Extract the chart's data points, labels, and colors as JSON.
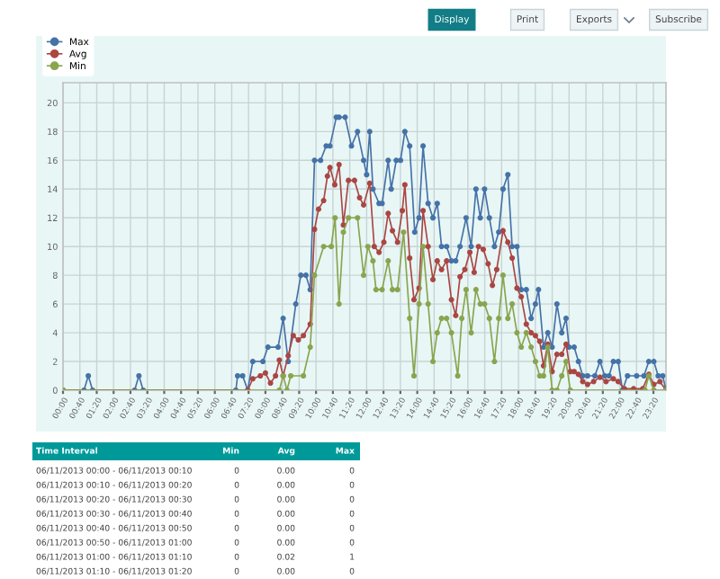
{
  "chart_data": {
    "type": "line",
    "legend": "top left",
    "marker": "circle",
    "grid": true,
    "ylim": [
      0,
      21.4
    ],
    "yticks": [
      0,
      2,
      4,
      6,
      8,
      10,
      12,
      14,
      16,
      18,
      20
    ],
    "xlim": [
      0,
      23.83
    ],
    "xticks": [
      {
        "value": 0,
        "label": "00:00"
      },
      {
        "value": 0.6667,
        "label": "00:40"
      },
      {
        "value": 1.3333,
        "label": "01:20"
      },
      {
        "value": 2,
        "label": "02:00"
      },
      {
        "value": 2.6667,
        "label": "02:40"
      },
      {
        "value": 3.3333,
        "label": "03:20"
      },
      {
        "value": 4,
        "label": "04:00"
      },
      {
        "value": 4.6667,
        "label": "04:40"
      },
      {
        "value": 5.3333,
        "label": "05:20"
      },
      {
        "value": 6,
        "label": "06:00"
      },
      {
        "value": 6.6667,
        "label": "06:40"
      },
      {
        "value": 7.3333,
        "label": "07:20"
      },
      {
        "value": 8,
        "label": "08:00"
      },
      {
        "value": 8.6667,
        "label": "08:40"
      },
      {
        "value": 9.3333,
        "label": "09:20"
      },
      {
        "value": 10,
        "label": "10:00"
      },
      {
        "value": 10.6667,
        "label": "10:40"
      },
      {
        "value": 11.3333,
        "label": "11:20"
      },
      {
        "value": 12,
        "label": "12:00"
      },
      {
        "value": 12.6667,
        "label": "12:40"
      },
      {
        "value": 13.3333,
        "label": "13:20"
      },
      {
        "value": 14,
        "label": "14:00"
      },
      {
        "value": 14.6667,
        "label": "14:40"
      },
      {
        "value": 15.3333,
        "label": "15:20"
      },
      {
        "value": 16,
        "label": "16:00"
      },
      {
        "value": 16.6667,
        "label": "16:40"
      },
      {
        "value": 17.3333,
        "label": "17:20"
      },
      {
        "value": 18,
        "label": "18:00"
      },
      {
        "value": 18.6667,
        "label": "18:40"
      },
      {
        "value": 19.3333,
        "label": "19:20"
      },
      {
        "value": 20,
        "label": "20:00"
      },
      {
        "value": 20.6667,
        "label": "20:40"
      },
      {
        "value": 21.3333,
        "label": "21:20"
      },
      {
        "value": 22,
        "label": "22:00"
      },
      {
        "value": 22.6667,
        "label": "22:40"
      },
      {
        "value": 23.3333,
        "label": "23:20"
      }
    ],
    "series": [
      {
        "name": "Max",
        "color": "#4572a7",
        "x": [
          0,
          0.83,
          1.0,
          1.17,
          2.83,
          3.0,
          3.17,
          6.83,
          6.9,
          7.1,
          7.3,
          7.5,
          7.9,
          8.1,
          8.5,
          8.7,
          8.9,
          9.2,
          9.4,
          9.6,
          9.77,
          9.94,
          10.18,
          10.4,
          10.55,
          10.8,
          10.91,
          11.15,
          11.4,
          11.64,
          11.88,
          12.0,
          12.12,
          12.25,
          12.49,
          12.61,
          12.85,
          12.97,
          13.17,
          13.34,
          13.51,
          13.7,
          13.9,
          14.07,
          14.23,
          14.43,
          14.62,
          14.79,
          14.96,
          15.16,
          15.35,
          15.52,
          15.69,
          15.93,
          16.13,
          16.32,
          16.49,
          16.66,
          16.85,
          17.05,
          17.22,
          17.39,
          17.58,
          17.75,
          17.94,
          18.11,
          18.31,
          18.5,
          18.67,
          18.79,
          18.99,
          19.16,
          19.33,
          19.52,
          19.71,
          19.88,
          20.0,
          20.2,
          20.37,
          20.54,
          20.73,
          21.02,
          21.22,
          21.41,
          21.58,
          21.75,
          21.94,
          22.11,
          22.31,
          22.67,
          22.96,
          23.15,
          23.35,
          23.52,
          23.7,
          23.83
        ],
        "values": [
          0,
          0,
          1,
          0,
          0,
          1,
          0,
          0,
          1,
          1,
          0,
          2,
          2,
          3,
          3,
          5,
          2,
          6,
          8,
          8,
          7,
          16,
          16,
          17,
          17,
          19,
          19,
          19,
          17,
          18,
          16,
          15,
          18,
          14,
          13,
          13,
          16,
          14,
          16,
          16,
          18,
          17,
          11,
          12,
          17,
          13,
          12,
          13,
          10,
          10,
          9,
          9,
          10,
          12,
          10,
          14,
          12,
          14,
          12,
          10,
          11,
          14,
          15,
          10,
          10,
          7,
          7,
          5,
          6,
          7,
          3,
          4,
          3,
          6,
          4,
          5,
          3,
          3,
          2,
          1,
          1,
          1,
          2,
          1,
          1,
          2,
          2,
          0,
          1,
          1,
          1,
          2,
          2,
          1,
          1,
          0
        ]
      },
      {
        "name": "Avg",
        "color": "#aa4643",
        "x": [
          0,
          7.3,
          7.5,
          7.8,
          8.0,
          8.2,
          8.4,
          8.55,
          8.7,
          8.9,
          9.1,
          9.3,
          9.5,
          9.77,
          9.94,
          10.1,
          10.3,
          10.45,
          10.55,
          10.74,
          10.91,
          11.08,
          11.28,
          11.52,
          11.72,
          11.88,
          12.12,
          12.3,
          12.49,
          12.68,
          12.85,
          13.02,
          13.22,
          13.41,
          13.51,
          13.7,
          13.87,
          14.07,
          14.23,
          14.43,
          14.62,
          14.79,
          14.96,
          15.16,
          15.35,
          15.52,
          15.69,
          15.88,
          16.08,
          16.25,
          16.42,
          16.61,
          16.8,
          16.97,
          17.14,
          17.39,
          17.58,
          17.75,
          17.94,
          18.11,
          18.31,
          18.5,
          18.67,
          18.84,
          18.99,
          19.16,
          19.33,
          19.52,
          19.71,
          19.88,
          20.05,
          20.2,
          20.37,
          20.54,
          20.73,
          20.97,
          21.22,
          21.46,
          21.75,
          21.94,
          22.19,
          22.55,
          22.91,
          23.15,
          23.35,
          23.59,
          23.83
        ],
        "values": [
          0,
          0,
          0.8,
          1.0,
          1.2,
          0.5,
          1.0,
          2.1,
          1.0,
          2.4,
          3.8,
          3.5,
          3.8,
          4.6,
          11.2,
          12.6,
          13.2,
          14.9,
          15.5,
          14.3,
          15.7,
          11.5,
          14.6,
          14.6,
          13.4,
          12.9,
          14.4,
          10.0,
          9.6,
          10.3,
          12.3,
          11.1,
          10.3,
          12.5,
          14.3,
          9.2,
          6.3,
          7.1,
          12.5,
          10.0,
          7.7,
          9.0,
          8.4,
          9.0,
          6.3,
          5.2,
          7.9,
          8.4,
          9.6,
          8.2,
          10.0,
          9.8,
          8.8,
          7.3,
          8.4,
          11.1,
          10.3,
          9.2,
          7.1,
          6.5,
          4.6,
          4.0,
          3.8,
          3.4,
          1.7,
          3.2,
          1.3,
          2.5,
          2.5,
          3.2,
          1.3,
          1.3,
          1.1,
          0.6,
          0.4,
          0.6,
          0.9,
          0.6,
          0.8,
          0.6,
          0.1,
          0.1,
          0.1,
          1.1,
          0.4,
          0.6,
          0
        ]
      },
      {
        "name": "Min",
        "color": "#89a54e",
        "x": [
          0,
          8.55,
          8.7,
          8.85,
          9.0,
          9.5,
          9.77,
          9.94,
          10.3,
          10.6,
          10.75,
          10.91,
          11.08,
          11.28,
          11.64,
          11.88,
          12.05,
          12.25,
          12.37,
          12.61,
          12.85,
          13.02,
          13.22,
          13.46,
          13.7,
          13.87,
          14.07,
          14.23,
          14.43,
          14.62,
          14.79,
          14.96,
          15.16,
          15.35,
          15.6,
          15.76,
          15.93,
          16.13,
          16.32,
          16.49,
          16.66,
          16.85,
          17.05,
          17.22,
          17.39,
          17.58,
          17.75,
          17.94,
          18.11,
          18.31,
          18.5,
          18.67,
          18.84,
          18.99,
          19.16,
          19.33,
          19.52,
          19.71,
          19.88,
          20.05,
          23.0,
          23.15,
          23.35,
          23.83
        ],
        "values": [
          0,
          0,
          1,
          0,
          1,
          1,
          3,
          8,
          10,
          10,
          12,
          6,
          11,
          12,
          12,
          8,
          10,
          9,
          7,
          7,
          9,
          7,
          7,
          11,
          5,
          1,
          6,
          10,
          6,
          2,
          4,
          5,
          5,
          4,
          1,
          5,
          7,
          4,
          7,
          6,
          6,
          5,
          2,
          5,
          8,
          5,
          6,
          4,
          3,
          4,
          3,
          2,
          1,
          1,
          3,
          0,
          0,
          1,
          2,
          0,
          0,
          1,
          0,
          0
        ]
      }
    ],
    "annotations": [
      "Display",
      "Print",
      "Exports",
      "Subscribe",
      "Time Interval",
      "Min",
      "Avg",
      "Max",
      "06/11/2013 00:00 - 06/11/2013 00:10",
      "0",
      "0.00",
      "0",
      "06/11/2013 00:10 - 06/11/2013 00:20",
      "0",
      "0.00",
      "0",
      "06/11/2013 00:20 - 06/11/2013 00:30",
      "0",
      "0.00",
      "0",
      "06/11/2013 00:30 - 06/11/2013 00:40",
      "0",
      "0.00",
      "0",
      "06/11/2013 00:40 - 06/11/2013 00:50",
      "0",
      "0.00",
      "0",
      "06/11/2013 00:50 - 06/11/2013 01:00",
      "0",
      "0.00",
      "0",
      "06/11/2013 01:00 - 06/11/2013 01:10",
      "0",
      "0.02",
      "1",
      "06/11/2013 01:10 - 06/11/2013 01:20",
      "0",
      "0.00",
      "0"
    ]
  }
}
